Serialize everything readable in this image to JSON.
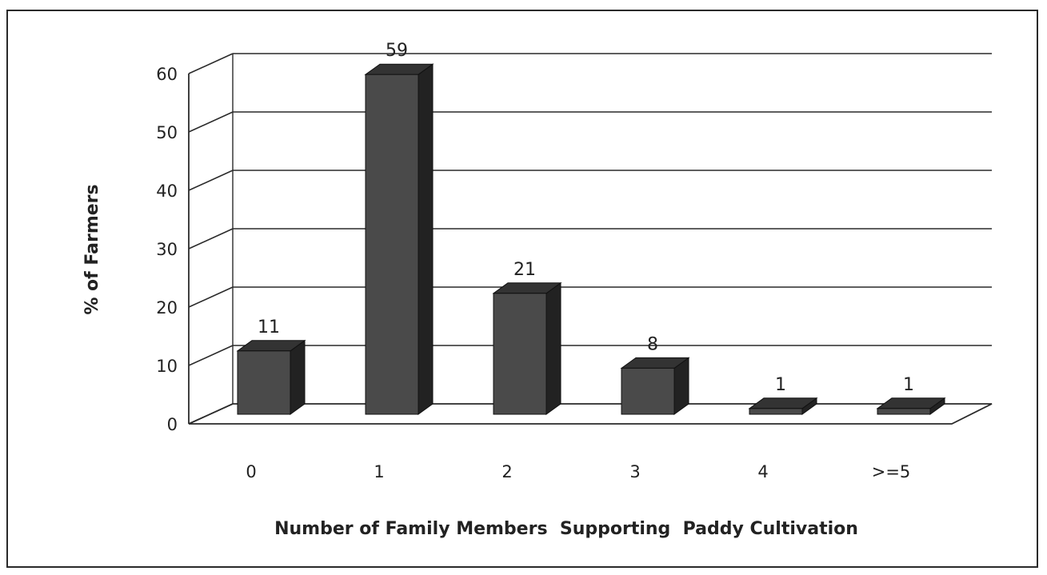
{
  "chart_data": {
    "type": "bar",
    "title": "",
    "categories": [
      "0",
      "1",
      "2",
      "3",
      "4",
      ">=5"
    ],
    "values": [
      11,
      59,
      21,
      8,
      1,
      1
    ],
    "data_labels": [
      "11",
      "59",
      "21",
      "8",
      "1",
      "1"
    ],
    "xlabel": "Number of Family Members  Supporting  Paddy Cultivation",
    "ylabel": "% of Farmers",
    "ylim": [
      0,
      60
    ],
    "yticks": [
      "0",
      "10",
      "20",
      "30",
      "40",
      "50",
      "60"
    ],
    "grid": true,
    "legend": "none",
    "style": "3d-column",
    "colors": {
      "bar_front": "#4a4a4a",
      "bar_side": "#222222",
      "bar_top": "#333333",
      "grid": "#2a2a2a"
    }
  }
}
